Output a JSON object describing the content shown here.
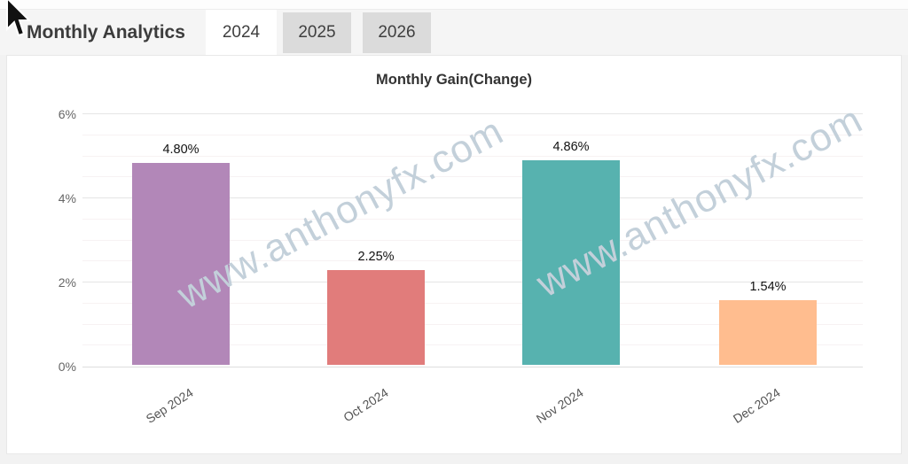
{
  "header": {
    "title": "Monthly Analytics"
  },
  "tabs": [
    {
      "label": "2024",
      "active": true
    },
    {
      "label": "2025",
      "active": false
    },
    {
      "label": "2026",
      "active": false
    }
  ],
  "watermark": {
    "text": "www.anthonyfx.com",
    "color": "#c3d0da"
  },
  "chart_data": {
    "type": "bar",
    "title": "Monthly Gain(Change)",
    "categories": [
      "Sep 2024",
      "Oct 2024",
      "Nov 2024",
      "Dec 2024"
    ],
    "values": [
      4.8,
      2.25,
      4.86,
      1.54
    ],
    "value_labels": [
      "4.80%",
      "2.25%",
      "4.86%",
      "1.54%"
    ],
    "colors": [
      "#b287b8",
      "#e17c7b",
      "#57b2af",
      "#ffbd8f"
    ],
    "yticks": [
      "6%",
      "4%",
      "2%",
      "0%"
    ],
    "ylim": [
      0,
      6
    ],
    "grid": true,
    "legend": "none",
    "xlabel": "",
    "ylabel": ""
  }
}
